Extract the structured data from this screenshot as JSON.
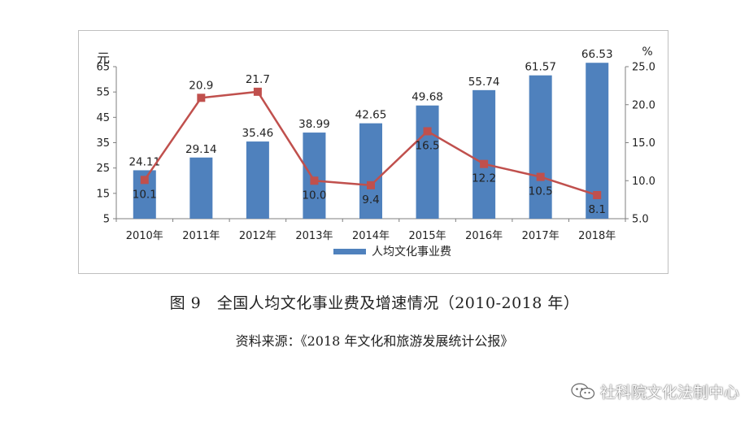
{
  "chart_data": {
    "type": "bar",
    "categories": [
      "2010年",
      "2011年",
      "2012年",
      "2013年",
      "2014年",
      "2015年",
      "2016年",
      "2017年",
      "2018年"
    ],
    "series": [
      {
        "name": "人均文化事业费",
        "kind": "bar",
        "axis": "left",
        "values": [
          24.11,
          29.14,
          35.46,
          38.99,
          42.65,
          49.68,
          55.74,
          61.57,
          66.53
        ],
        "labels": [
          "24.11",
          "29.14",
          "35.46",
          "38.99",
          "42.65",
          "49.68",
          "55.74",
          "61.57",
          "66.53"
        ],
        "color": "#4f81bd"
      },
      {
        "kind": "line",
        "axis": "right",
        "values": [
          10.1,
          20.9,
          21.7,
          10.0,
          9.4,
          16.5,
          12.2,
          10.5,
          8.1
        ],
        "labels": [
          "10.1",
          "20.9",
          "21.7",
          "10.0",
          "9.4",
          "16.5",
          "12.2",
          "10.5",
          "8.1"
        ],
        "color": "#c0504d"
      }
    ],
    "y_left": {
      "unit": "元",
      "ylim": [
        5,
        65
      ],
      "ticks": [
        "5",
        "15",
        "25",
        "35",
        "45",
        "55",
        "65"
      ]
    },
    "y_right": {
      "unit": "%",
      "ylim": [
        5,
        25
      ],
      "ticks": [
        "5.0",
        "10.0",
        "15.0",
        "20.0",
        "25.0"
      ]
    },
    "legend": {
      "position": "bottom",
      "entries": [
        "人均文化事业费"
      ]
    },
    "grid": false
  },
  "caption": "图 9　全国人均文化事业费及增速情况（2010-2018 年）",
  "source": "资料来源：《2018 年文化和旅游发展统计公报》",
  "watermark": "社科院文化法制中心",
  "colors": {
    "bar": "#4f81bd",
    "line": "#c0504d",
    "axis": "#7f7f7f"
  }
}
